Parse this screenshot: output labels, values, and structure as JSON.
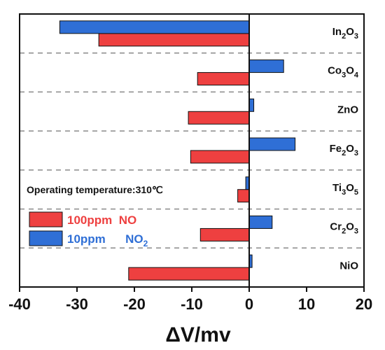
{
  "chart_data": {
    "type": "bar",
    "orientation": "horizontal",
    "categories": [
      {
        "base": "In",
        "parts": [
          {
            "t": "In"
          },
          {
            "t": "2",
            "sub": true
          },
          {
            "t": "O"
          },
          {
            "t": "3",
            "sub": true
          }
        ]
      },
      {
        "base": "Co",
        "parts": [
          {
            "t": "Co"
          },
          {
            "t": "3",
            "sub": true
          },
          {
            "t": "O"
          },
          {
            "t": "4",
            "sub": true
          }
        ]
      },
      {
        "base": "Zn",
        "parts": [
          {
            "t": "ZnO"
          }
        ]
      },
      {
        "base": "Fe",
        "parts": [
          {
            "t": "Fe"
          },
          {
            "t": "2",
            "sub": true
          },
          {
            "t": "O"
          },
          {
            "t": "3",
            "sub": true
          }
        ]
      },
      {
        "base": "Ti",
        "parts": [
          {
            "t": "Ti"
          },
          {
            "t": "3",
            "sub": true
          },
          {
            "t": "O"
          },
          {
            "t": "5",
            "sub": true
          }
        ]
      },
      {
        "base": "Cr",
        "parts": [
          {
            "t": "Cr"
          },
          {
            "t": "2",
            "sub": true
          },
          {
            "t": "O"
          },
          {
            "t": "3",
            "sub": true
          }
        ]
      },
      {
        "base": "Ni",
        "parts": [
          {
            "t": "NiO"
          }
        ]
      }
    ],
    "series": [
      {
        "legend_parts": [
          {
            "t": "100ppm  NO"
          }
        ],
        "color": "#ee4040",
        "values": [
          -26.2,
          -9.0,
          -10.6,
          -10.2,
          -2.0,
          -8.5,
          -21.0
        ]
      },
      {
        "legend_parts": [
          {
            "t": "10ppm      NO"
          },
          {
            "t": "2",
            "sub": true
          }
        ],
        "color": "#2f6fd6",
        "values": [
          -33.0,
          6.0,
          0.8,
          8.0,
          -0.6,
          4.0,
          0.5
        ]
      }
    ],
    "xlabel": "ΔV/mv",
    "xlim": [
      -40,
      20
    ],
    "xticks": [
      "-40",
      "-30",
      "-20",
      "-10",
      "0",
      "10",
      "20"
    ],
    "xtick_values": [
      -40,
      -30,
      -20,
      -10,
      0,
      10,
      20
    ],
    "annotation": "Operating temperature:310℃",
    "legend_position": "lower-left",
    "grid": "dashed horizontal separators between categories"
  }
}
